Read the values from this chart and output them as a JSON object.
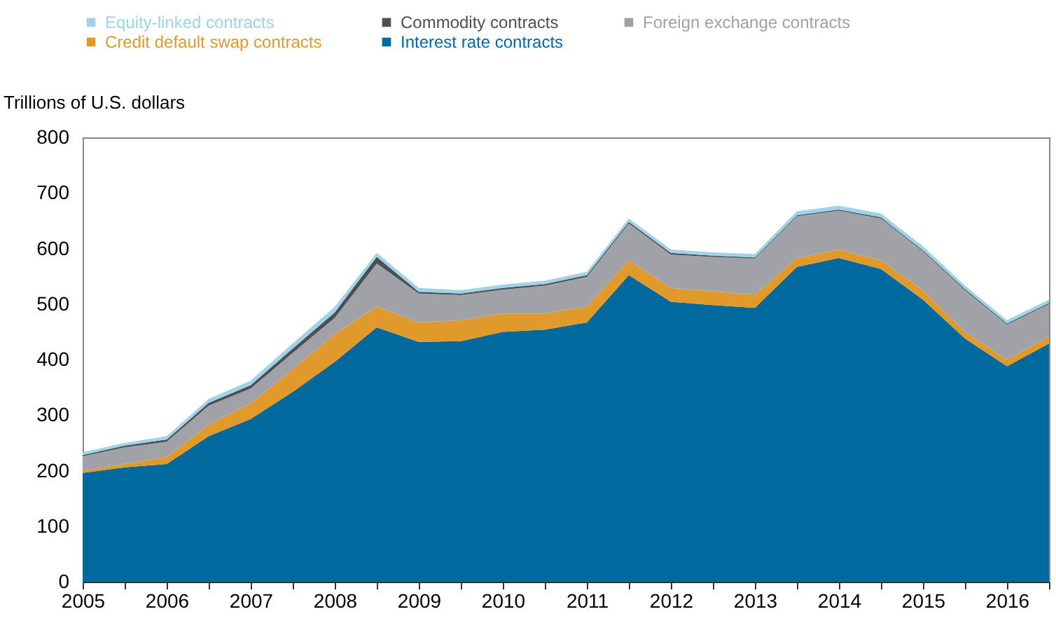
{
  "chart_data": {
    "type": "area",
    "stacked": true,
    "ylabel": "Trillions of U.S. dollars",
    "legend": "top left",
    "x": [
      2005,
      2005.5,
      2006,
      2006.5,
      2007,
      2007.5,
      2008,
      2008.5,
      2009,
      2009.5,
      2010,
      2010.5,
      2011,
      2011.5,
      2012,
      2012.5,
      2013,
      2013.5,
      2014,
      2014.5,
      2015,
      2015.5,
      2016,
      2016.5
    ],
    "series": [
      {
        "name": "Interest rate contracts",
        "color": "#006a9e",
        "values": [
          196,
          206,
          212,
          262,
          293,
          342,
          396,
          458,
          432,
          433,
          450,
          454,
          467,
          552,
          504,
          498,
          493,
          567,
          583,
          563,
          508,
          438,
          388,
          429
        ]
      },
      {
        "name": "Credit default swap contracts",
        "color": "#e09a2b",
        "values": [
          4,
          6,
          13,
          21,
          28,
          41,
          50,
          38,
          35,
          38,
          33,
          29,
          29,
          27,
          25,
          25,
          24,
          16,
          15,
          16,
          17,
          12,
          12,
          13
        ]
      },
      {
        "name": "Foreign exchange contracts",
        "color": "#a0a2a8",
        "values": [
          26,
          30,
          27,
          34,
          27,
          29,
          29,
          77,
          52,
          45,
          43,
          50,
          53,
          66,
          60,
          62,
          65,
          75,
          70,
          75,
          70,
          75,
          63,
          58
        ]
      },
      {
        "name": "Commodity contracts",
        "color": "#4d4f53",
        "values": [
          2,
          3,
          4,
          5,
          6,
          8,
          10,
          12,
          3,
          3,
          3,
          3,
          3,
          3,
          3,
          2,
          2,
          2,
          2,
          2,
          2,
          2,
          2,
          2
        ]
      },
      {
        "name": "Equity-linked contracts",
        "color": "#9fd3ea",
        "values": [
          5,
          5,
          6,
          7,
          8,
          9,
          10,
          7,
          7,
          6,
          6,
          6,
          6,
          6,
          6,
          6,
          6,
          7,
          7,
          7,
          7,
          6,
          6,
          6
        ]
      }
    ],
    "xlim": [
      2005,
      2016.5
    ],
    "xticks": [
      2005,
      {
        "value": 2005.5,
        "label": null
      },
      2006,
      {
        "value": 2006.5,
        "label": null
      },
      2007,
      {
        "value": 2007.5,
        "label": null
      },
      2008,
      {
        "value": 2008.5,
        "label": null
      },
      2009,
      {
        "value": 2009.5,
        "label": null
      },
      2010,
      {
        "value": 2010.5,
        "label": null
      },
      2011,
      {
        "value": 2011.5,
        "label": null
      },
      2012,
      {
        "value": 2012.5,
        "label": null
      },
      2013,
      {
        "value": 2013.5,
        "label": null
      },
      2014,
      {
        "value": 2014.5,
        "label": null
      },
      2015,
      {
        "value": 2015.5,
        "label": null
      },
      2016,
      {
        "value": 2016.5,
        "label": null
      }
    ],
    "ylim": [
      0,
      800
    ],
    "yticks": [
      0,
      100,
      200,
      300,
      400,
      500,
      600,
      700,
      800
    ]
  }
}
